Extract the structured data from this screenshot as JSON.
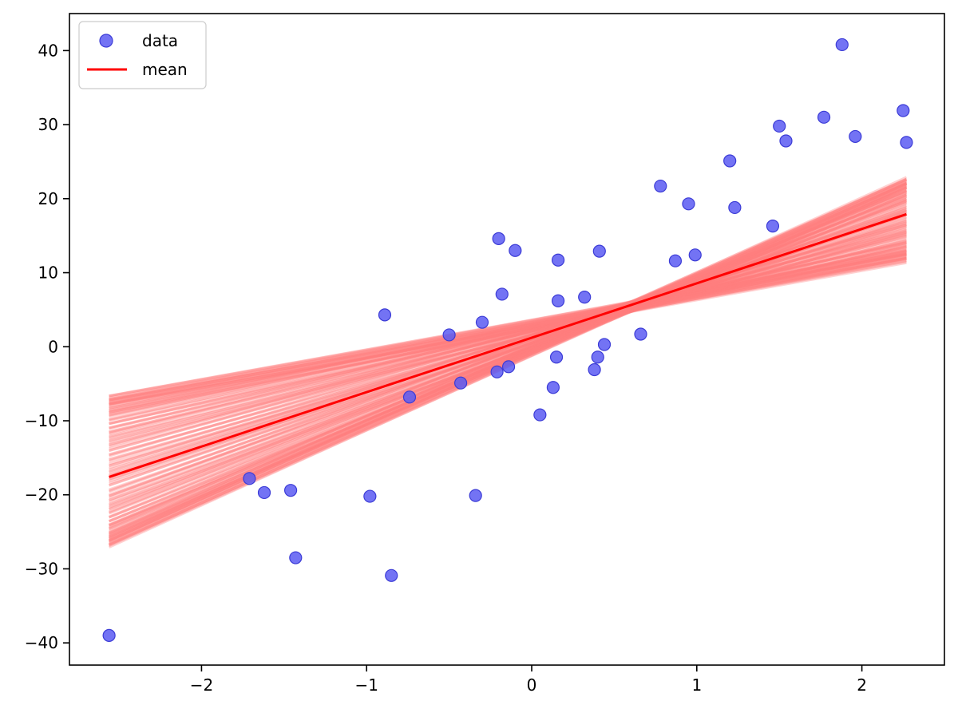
{
  "chart_data": {
    "type": "scatter",
    "xlim": [
      -2.8,
      2.5
    ],
    "ylim": [
      -43,
      45
    ],
    "x_ticks": [
      -2,
      -1,
      0,
      1,
      2
    ],
    "y_ticks": [
      -40,
      -30,
      -20,
      -10,
      0,
      10,
      20,
      30,
      40
    ],
    "x_tick_labels": [
      "−2",
      "−1",
      "0",
      "1",
      "2"
    ],
    "y_tick_labels": [
      "−40",
      "−30",
      "−20",
      "−10",
      "0",
      "10",
      "20",
      "30",
      "40"
    ],
    "grid": false,
    "legend_position": "top-left",
    "colors": {
      "data": "#5b5bf2",
      "data_edge": "#3b3bd6",
      "mean": "#ff0000",
      "band": "#ff7f7f"
    },
    "series": [
      {
        "name": "data",
        "kind": "scatter",
        "points": [
          [
            -2.56,
            -39.0
          ],
          [
            -1.71,
            -17.8
          ],
          [
            -1.62,
            -19.7
          ],
          [
            -1.46,
            -19.4
          ],
          [
            -1.43,
            -28.5
          ],
          [
            -0.98,
            -20.2
          ],
          [
            -0.89,
            4.3
          ],
          [
            -0.85,
            -30.9
          ],
          [
            -0.74,
            -6.8
          ],
          [
            -0.5,
            1.6
          ],
          [
            -0.43,
            -4.9
          ],
          [
            -0.34,
            -20.1
          ],
          [
            -0.3,
            3.3
          ],
          [
            -0.21,
            -3.4
          ],
          [
            -0.2,
            14.6
          ],
          [
            -0.18,
            7.1
          ],
          [
            -0.14,
            -2.7
          ],
          [
            -0.1,
            13.0
          ],
          [
            0.05,
            -9.2
          ],
          [
            0.13,
            -5.5
          ],
          [
            0.15,
            -1.4
          ],
          [
            0.16,
            11.7
          ],
          [
            0.16,
            6.2
          ],
          [
            0.32,
            6.7
          ],
          [
            0.38,
            -3.1
          ],
          [
            0.4,
            -1.4
          ],
          [
            0.41,
            12.9
          ],
          [
            0.44,
            0.3
          ],
          [
            0.66,
            1.7
          ],
          [
            0.78,
            21.7
          ],
          [
            0.87,
            11.6
          ],
          [
            0.95,
            19.3
          ],
          [
            0.99,
            12.4
          ],
          [
            1.2,
            25.1
          ],
          [
            1.23,
            18.8
          ],
          [
            1.46,
            16.3
          ],
          [
            1.5,
            29.8
          ],
          [
            1.54,
            27.8
          ],
          [
            1.77,
            31.0
          ],
          [
            1.88,
            40.8
          ],
          [
            1.96,
            28.4
          ],
          [
            2.25,
            31.9
          ],
          [
            2.27,
            27.6
          ]
        ]
      },
      {
        "name": "mean",
        "kind": "line",
        "x": [
          -2.56,
          2.27
        ],
        "y": [
          -17.6,
          17.9
        ]
      }
    ],
    "posterior_band": {
      "x_range": [
        -2.56,
        2.27
      ],
      "pivot": [
        0.6,
        5.4
      ],
      "left_lower": -23.5,
      "left_upper": -11.5,
      "right_lower": 12.0,
      "right_upper": 22.3,
      "n_lines": 140
    }
  }
}
